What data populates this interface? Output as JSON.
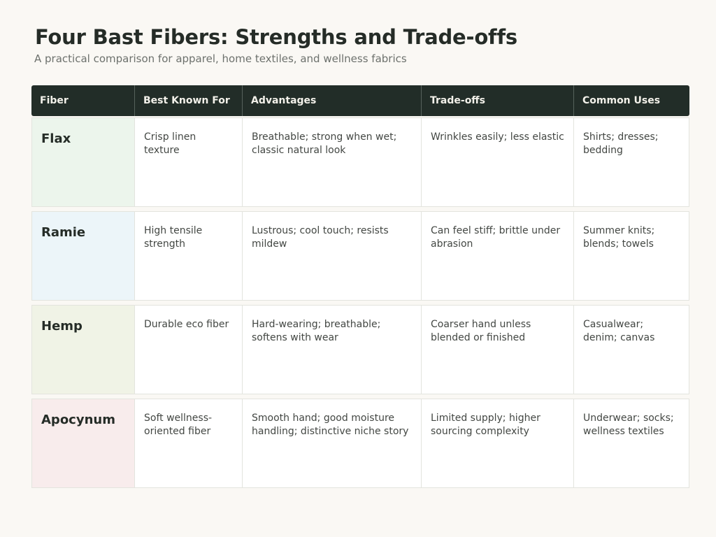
{
  "title": "Four Bast Fibers: Strengths and Trade-offs",
  "subtitle": "A practical comparison for apparel, home textiles, and wellness fabrics",
  "columns": [
    "Fiber",
    "Best Known For",
    "Advantages",
    "Trade-offs",
    "Common Uses"
  ],
  "rows": [
    {
      "fiber": "Flax",
      "best_known_for": "Crisp linen texture",
      "advantages": "Breathable; strong when wet; classic natural look",
      "tradeoffs": "Wrinkles easily; less elastic",
      "common_uses": "Shirts; dresses; bedding",
      "tint": "#ecf5ec"
    },
    {
      "fiber": "Ramie",
      "best_known_for": "High tensile strength",
      "advantages": "Lustrous; cool touch; resists mildew",
      "tradeoffs": "Can feel stiff; brittle under abrasion",
      "common_uses": "Summer knits; blends; towels",
      "tint": "#ecf5f9"
    },
    {
      "fiber": "Hemp",
      "best_known_for": "Durable eco fiber",
      "advantages": "Hard-wearing; breathable; softens with wear",
      "tradeoffs": "Coarser hand unless blended or finished",
      "common_uses": "Casualwear; denim; canvas",
      "tint": "#f0f3e6"
    },
    {
      "fiber": "Apocynum",
      "best_known_for": "Soft wellness-oriented fiber",
      "advantages": "Smooth hand; good moisture handling; distinctive niche story",
      "tradeoffs": "Limited supply; higher sourcing complexity",
      "common_uses": "Underwear; socks; wellness textiles",
      "tint": "#f8ecec"
    }
  ],
  "colors": {
    "header_bg": "#222d28",
    "page_bg": "#faf8f4"
  }
}
